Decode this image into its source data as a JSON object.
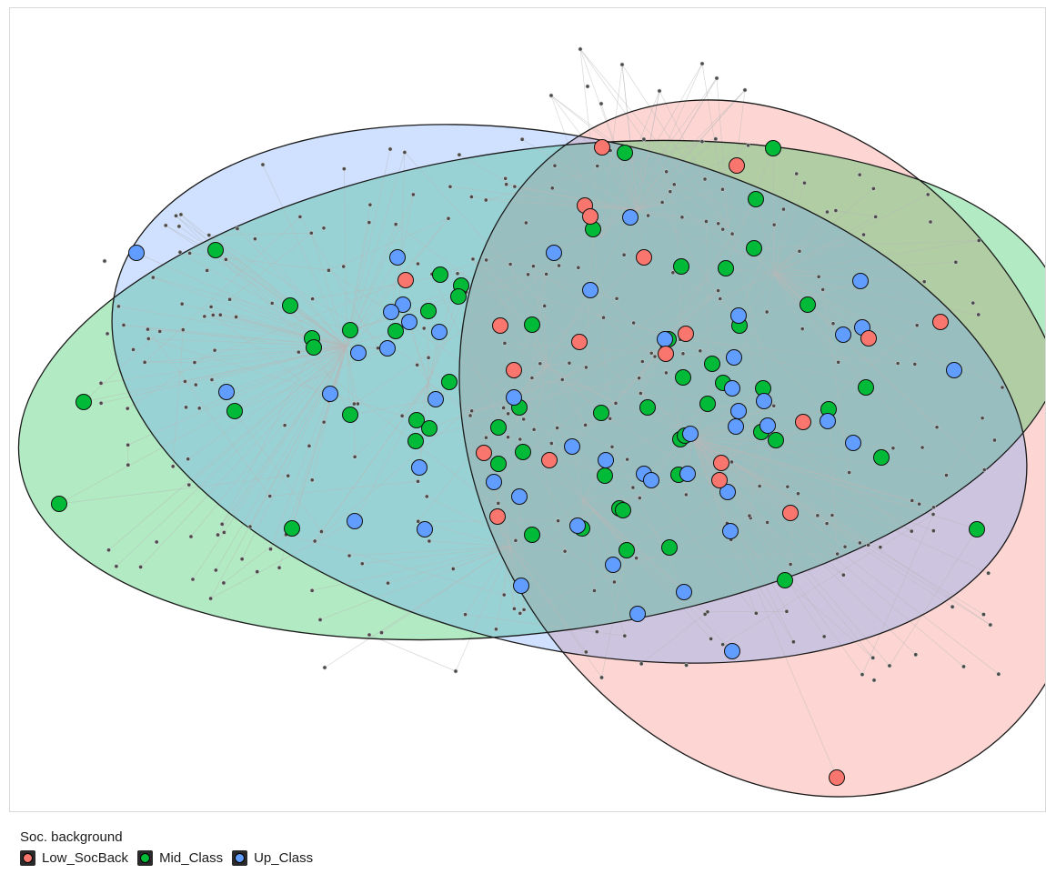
{
  "legend": {
    "title": "Soc. background",
    "items": [
      {
        "label": "Low_SocBack",
        "color": "#F8766D"
      },
      {
        "label": "Mid_Class",
        "color": "#00BA38"
      },
      {
        "label": "Up_Class",
        "color": "#619CFF"
      }
    ]
  },
  "network": {
    "edge_color": "#b8b8b8",
    "small_node_color": "#4a4a4a",
    "group_fill_colors": {
      "Low_SocBack": "#F8766D",
      "Mid_Class": "#00BA38",
      "Up_Class": "#619CFF"
    }
  }
}
